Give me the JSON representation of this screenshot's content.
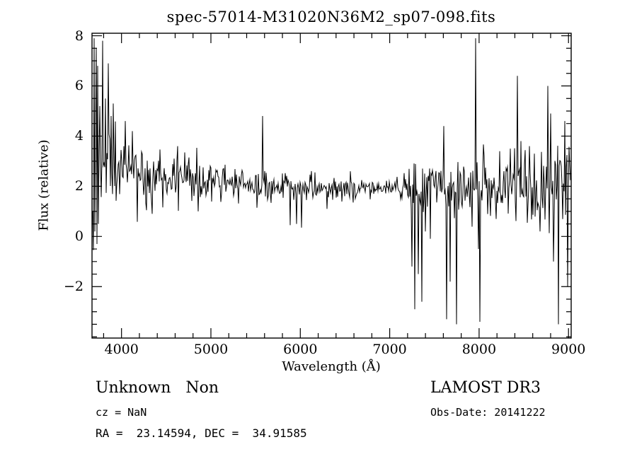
{
  "annotations": {
    "class_label": "Unknown   Non",
    "survey": "LAMOST DR3",
    "cz": "cz = NaN",
    "obs_date": "Obs-Date: 20141222",
    "coords": "RA =  23.14594, DEC =  34.91585"
  },
  "chart_data": {
    "type": "line",
    "title": "spec-57014-M31020N36M2_sp07-098.fits",
    "xlabel": "Wavelength (Å)",
    "ylabel": "Flux (relative)",
    "xlim": [
      3670,
      9030
    ],
    "ylim": [
      -4.05,
      8.1
    ],
    "xticks": [
      4000,
      5000,
      6000,
      7000,
      8000,
      9000
    ],
    "yticks": [
      -2,
      0,
      2,
      4,
      6,
      8
    ],
    "x_minor_step": 200,
    "y_minor_step": 0.5,
    "line_color": "#000000",
    "frame_color": "#000000",
    "seed": 20141222,
    "continuum": [
      [
        3670,
        3.4
      ],
      [
        3750,
        3.0
      ],
      [
        3900,
        2.9
      ],
      [
        4100,
        2.6
      ],
      [
        4400,
        2.3
      ],
      [
        4800,
        2.2
      ],
      [
        5200,
        2.1
      ],
      [
        5600,
        2.0
      ],
      [
        6000,
        1.95
      ],
      [
        6500,
        1.9
      ],
      [
        7000,
        1.85
      ],
      [
        7400,
        1.8
      ],
      [
        7800,
        1.85
      ],
      [
        8200,
        1.8
      ],
      [
        8600,
        1.75
      ],
      [
        9030,
        1.8
      ]
    ],
    "noise_sigma": [
      [
        3670,
        2.3
      ],
      [
        3720,
        2.0
      ],
      [
        3800,
        1.3
      ],
      [
        3950,
        1.0
      ],
      [
        4150,
        0.7
      ],
      [
        4400,
        0.55
      ],
      [
        4800,
        0.45
      ],
      [
        5300,
        0.4
      ],
      [
        5700,
        0.33
      ],
      [
        6100,
        0.27
      ],
      [
        6600,
        0.22
      ],
      [
        7000,
        0.2
      ],
      [
        7150,
        0.35
      ],
      [
        7250,
        0.65
      ],
      [
        7400,
        0.5
      ],
      [
        7550,
        0.6
      ],
      [
        7700,
        0.75
      ],
      [
        7850,
        0.6
      ],
      [
        8000,
        0.75
      ],
      [
        8200,
        0.5
      ],
      [
        8400,
        0.6
      ],
      [
        8600,
        0.65
      ],
      [
        8800,
        0.9
      ],
      [
        9030,
        1.1
      ]
    ],
    "spikes": [
      [
        3695,
        7.9
      ],
      [
        3705,
        0.2
      ],
      [
        3715,
        7.5
      ],
      [
        3725,
        -0.3
      ],
      [
        3735,
        6.8
      ],
      [
        3745,
        0.5
      ],
      [
        3760,
        5.2
      ],
      [
        3790,
        7.8
      ],
      [
        3820,
        5.5
      ],
      [
        3850,
        6.9
      ],
      [
        3880,
        4.8
      ],
      [
        3910,
        5.3
      ],
      [
        4046,
        4.6
      ],
      [
        4120,
        4.2
      ],
      [
        4340,
        0.9
      ],
      [
        4630,
        3.6
      ],
      [
        4861,
        1.0
      ],
      [
        5577,
        4.8
      ],
      [
        5890,
        0.45
      ],
      [
        5960,
        0.5
      ],
      [
        6010,
        0.35
      ],
      [
        6300,
        1.1
      ],
      [
        6563,
        2.6
      ],
      [
        7245,
        -1.2
      ],
      [
        7280,
        -2.9
      ],
      [
        7320,
        -1.5
      ],
      [
        7360,
        -2.6
      ],
      [
        7400,
        0.2
      ],
      [
        7605,
        4.4
      ],
      [
        7640,
        -3.3
      ],
      [
        7680,
        -1.8
      ],
      [
        7750,
        -3.5
      ],
      [
        7960,
        7.9
      ],
      [
        7990,
        -0.5
      ],
      [
        8010,
        -3.4
      ],
      [
        8060,
        3.2
      ],
      [
        8230,
        3.4
      ],
      [
        8350,
        3.5
      ],
      [
        8430,
        6.4
      ],
      [
        8470,
        3.8
      ],
      [
        8560,
        3.6
      ],
      [
        8620,
        3.3
      ],
      [
        8680,
        0.2
      ],
      [
        8770,
        6.0
      ],
      [
        8800,
        4.9
      ],
      [
        8830,
        -1.0
      ],
      [
        8890,
        -3.5
      ],
      [
        8920,
        2.8
      ],
      [
        8960,
        4.6
      ],
      [
        8990,
        -2.0
      ]
    ]
  }
}
